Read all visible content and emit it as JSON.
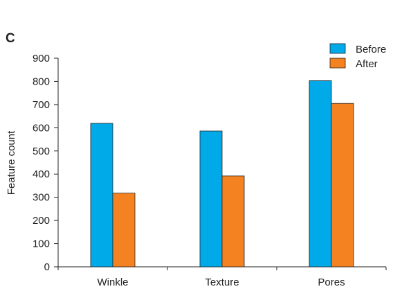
{
  "panel_label": "C",
  "chart_data": {
    "type": "bar",
    "title": "",
    "xlabel": "",
    "ylabel": "Feature count",
    "categories": [
      "Winkle",
      "Texture",
      "Pores"
    ],
    "series": [
      {
        "name": "Before",
        "values": [
          619,
          586,
          803
        ],
        "color": "#00a9e8"
      },
      {
        "name": "After",
        "values": [
          318,
          392,
          705
        ],
        "color": "#f58220"
      }
    ],
    "ylim": [
      0,
      900
    ],
    "yticks": [
      0,
      100,
      200,
      300,
      400,
      500,
      600,
      700,
      800,
      900
    ],
    "grid": false,
    "legend_position": "top-right"
  }
}
